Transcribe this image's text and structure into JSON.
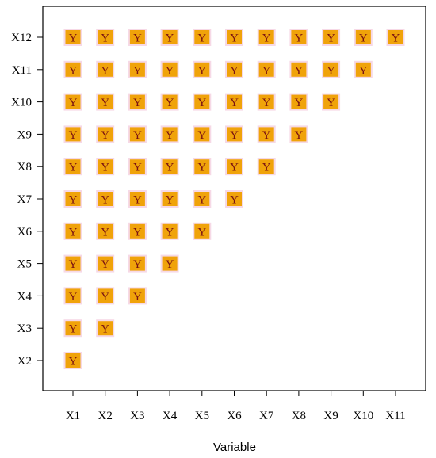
{
  "chart_data": {
    "type": "heatmap",
    "title": "",
    "xlabel": "Variable",
    "ylabel": "",
    "x_categories": [
      "X1",
      "X2",
      "X3",
      "X4",
      "X5",
      "X6",
      "X7",
      "X8",
      "X9",
      "X10",
      "X11"
    ],
    "y_categories": [
      "X2",
      "X3",
      "X4",
      "X5",
      "X6",
      "X7",
      "X8",
      "X9",
      "X10",
      "X11",
      "X12"
    ],
    "cell_text": "Y",
    "cells_description": "lower-triangular: a cell is marked for each pair (x, y) where x comes before y",
    "cells": [
      [
        "X1",
        "X2"
      ],
      [
        "X1",
        "X3"
      ],
      [
        "X2",
        "X3"
      ],
      [
        "X1",
        "X4"
      ],
      [
        "X2",
        "X4"
      ],
      [
        "X3",
        "X4"
      ],
      [
        "X1",
        "X5"
      ],
      [
        "X2",
        "X5"
      ],
      [
        "X3",
        "X5"
      ],
      [
        "X4",
        "X5"
      ],
      [
        "X1",
        "X6"
      ],
      [
        "X2",
        "X6"
      ],
      [
        "X3",
        "X6"
      ],
      [
        "X4",
        "X6"
      ],
      [
        "X5",
        "X6"
      ],
      [
        "X1",
        "X7"
      ],
      [
        "X2",
        "X7"
      ],
      [
        "X3",
        "X7"
      ],
      [
        "X4",
        "X7"
      ],
      [
        "X5",
        "X7"
      ],
      [
        "X6",
        "X7"
      ],
      [
        "X1",
        "X8"
      ],
      [
        "X2",
        "X8"
      ],
      [
        "X3",
        "X8"
      ],
      [
        "X4",
        "X8"
      ],
      [
        "X5",
        "X8"
      ],
      [
        "X6",
        "X8"
      ],
      [
        "X7",
        "X8"
      ],
      [
        "X1",
        "X9"
      ],
      [
        "X2",
        "X9"
      ],
      [
        "X3",
        "X9"
      ],
      [
        "X4",
        "X9"
      ],
      [
        "X5",
        "X9"
      ],
      [
        "X6",
        "X9"
      ],
      [
        "X7",
        "X9"
      ],
      [
        "X8",
        "X9"
      ],
      [
        "X1",
        "X10"
      ],
      [
        "X2",
        "X10"
      ],
      [
        "X3",
        "X10"
      ],
      [
        "X4",
        "X10"
      ],
      [
        "X5",
        "X10"
      ],
      [
        "X6",
        "X10"
      ],
      [
        "X7",
        "X10"
      ],
      [
        "X8",
        "X10"
      ],
      [
        "X9",
        "X10"
      ],
      [
        "X1",
        "X11"
      ],
      [
        "X2",
        "X11"
      ],
      [
        "X3",
        "X11"
      ],
      [
        "X4",
        "X11"
      ],
      [
        "X5",
        "X11"
      ],
      [
        "X6",
        "X11"
      ],
      [
        "X7",
        "X11"
      ],
      [
        "X8",
        "X11"
      ],
      [
        "X9",
        "X11"
      ],
      [
        "X10",
        "X11"
      ],
      [
        "X1",
        "X12"
      ],
      [
        "X2",
        "X12"
      ],
      [
        "X3",
        "X12"
      ],
      [
        "X4",
        "X12"
      ],
      [
        "X5",
        "X12"
      ],
      [
        "X6",
        "X12"
      ],
      [
        "X7",
        "X12"
      ],
      [
        "X8",
        "X12"
      ],
      [
        "X9",
        "X12"
      ],
      [
        "X10",
        "X12"
      ],
      [
        "X11",
        "X12"
      ]
    ],
    "colors": {
      "cell_fill": "#f0a30a",
      "cell_halo": "#f6d9e6",
      "cell_text": "#7a1212",
      "axis": "#000000"
    },
    "grid": false,
    "legend": "none"
  }
}
